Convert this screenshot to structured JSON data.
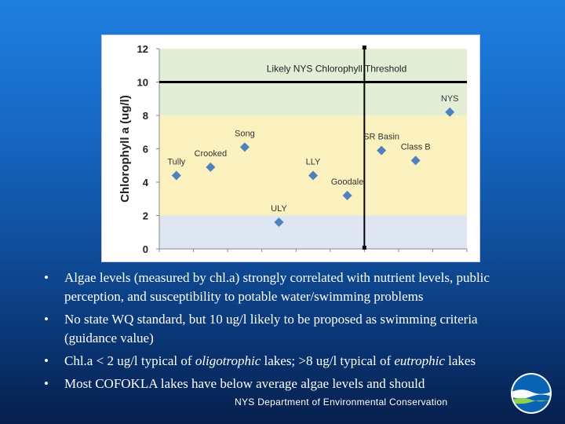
{
  "chart_data": {
    "type": "scatter",
    "ylabel": "Chlorophyll a (ug/l)",
    "ylim": [
      0,
      12
    ],
    "yticks": [
      "0",
      "2",
      "4",
      "6",
      "8",
      "10",
      "12"
    ],
    "grid": false,
    "zones": [
      {
        "from": 0,
        "to": 2,
        "color": "#dde6f2"
      },
      {
        "from": 2,
        "to": 8,
        "color": "#fbf1bf"
      },
      {
        "from": 8,
        "to": 12,
        "color": "#e2efd6"
      }
    ],
    "threshold": {
      "value": 10,
      "label": "Likely NYS Chlorophyll Threshold"
    },
    "divider_between": [
      "Goodale",
      "SR Basin"
    ],
    "marker_color": "#4f81bd",
    "points": [
      {
        "name": "Tully",
        "value": 4.4
      },
      {
        "name": "Crooked",
        "value": 4.9
      },
      {
        "name": "Song",
        "value": 6.1
      },
      {
        "name": "ULY",
        "value": 1.6
      },
      {
        "name": "LLY",
        "value": 4.4
      },
      {
        "name": "Goodale",
        "value": 3.2
      },
      {
        "name": "SR Basin",
        "value": 5.9
      },
      {
        "name": "Class B",
        "value": 5.3
      },
      {
        "name": "NYS",
        "value": 8.2
      }
    ]
  },
  "bullets": [
    {
      "text": "Algae levels (measured by chl.a) strongly correlated with nutrient levels, public perception, and susceptibility to potable water/swimming problems"
    },
    {
      "text": "No state WQ standard, but 10 ug/l likely to be proposed as swimming criteria (guidance value)"
    },
    {
      "parts": [
        "Chl.a < 2 ug/l typical of ",
        "oligotrophic",
        " lakes; >8 ug/l typical of ",
        "eutrophic",
        " lakes"
      ]
    },
    {
      "text": "Most COFOKLA lakes have below average algae levels and should"
    }
  ],
  "bullet_symbol": "•",
  "footer": "NYS Department of Environmental Conservation"
}
